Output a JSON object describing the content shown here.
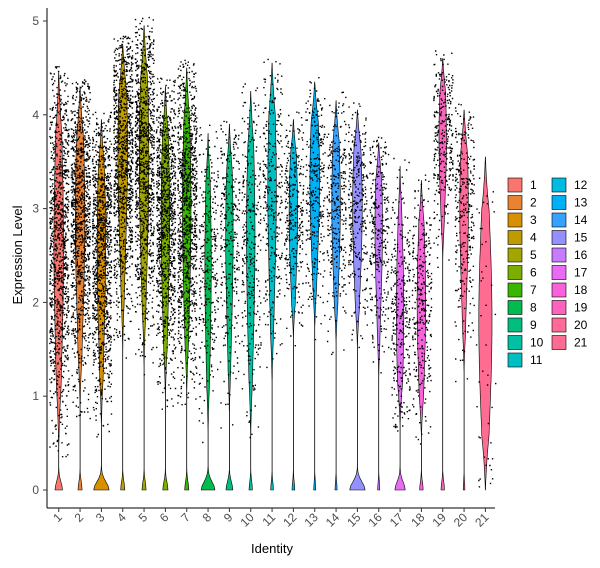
{
  "chart_data": {
    "type": "violin",
    "title": "",
    "xlabel": "Identity",
    "ylabel": "Expression Level",
    "ylim": [
      -0.25,
      5.2
    ],
    "yticks": [
      0,
      1,
      2,
      3,
      4,
      5
    ],
    "grid": false,
    "legend_position": "right",
    "categories": [
      "1",
      "2",
      "3",
      "4",
      "5",
      "6",
      "7",
      "8",
      "9",
      "10",
      "11",
      "12",
      "13",
      "14",
      "15",
      "16",
      "17",
      "18",
      "19",
      "20",
      "21"
    ],
    "colors": [
      "#F8766D",
      "#EA8331",
      "#D89000",
      "#C09B00",
      "#A3A500",
      "#7CAE00",
      "#39B600",
      "#00BB4E",
      "#00BF7D",
      "#00C1A3",
      "#00BFC4",
      "#00BAE0",
      "#00B0F6",
      "#35A2FF",
      "#9590FF",
      "#C77CFF",
      "#E76BF3",
      "#FA62DB",
      "#FF62BC",
      "#FF6A98",
      "#FF6C91"
    ],
    "series": [
      {
        "name": "1",
        "zero_height": 0.22,
        "main_min": 0.45,
        "main_max": 4.45,
        "main_center": 2.6,
        "main_width": 0.45,
        "dots": "dense"
      },
      {
        "name": "2",
        "zero_height": 0.12,
        "main_min": 0.85,
        "main_max": 4.3,
        "main_center": 2.9,
        "main_width": 0.45,
        "dots": "dense"
      },
      {
        "name": "3",
        "zero_height": 0.45,
        "main_min": 0.65,
        "main_max": 3.95,
        "main_center": 2.6,
        "main_width": 0.4,
        "dots": "dense"
      },
      {
        "name": "4",
        "zero_height": 0.12,
        "main_min": 1.45,
        "main_max": 4.75,
        "main_center": 3.6,
        "main_width": 0.45,
        "dots": "dense"
      },
      {
        "name": "5",
        "zero_height": 0.12,
        "main_min": 1.3,
        "main_max": 4.95,
        "main_center": 3.5,
        "main_width": 0.45,
        "dots": "dense"
      },
      {
        "name": "6",
        "zero_height": 0.15,
        "main_min": 0.95,
        "main_max": 4.3,
        "main_center": 2.9,
        "main_width": 0.4,
        "dots": "dense"
      },
      {
        "name": "7",
        "zero_height": 0.12,
        "main_min": 1.0,
        "main_max": 4.5,
        "main_center": 3.0,
        "main_width": 0.4,
        "dots": "dense"
      },
      {
        "name": "8",
        "zero_height": 0.4,
        "main_min": 0.6,
        "main_max": 3.8,
        "main_center": 2.4,
        "main_width": 0.3,
        "dots": "medium"
      },
      {
        "name": "9",
        "zero_height": 0.2,
        "main_min": 0.75,
        "main_max": 3.9,
        "main_center": 2.7,
        "main_width": 0.35,
        "dots": "medium"
      },
      {
        "name": "10",
        "zero_height": 0.1,
        "main_min": 0.55,
        "main_max": 4.25,
        "main_center": 2.7,
        "main_width": 0.4,
        "dots": "medium"
      },
      {
        "name": "11",
        "zero_height": 0.08,
        "main_min": 1.1,
        "main_max": 4.55,
        "main_center": 3.2,
        "main_width": 0.4,
        "dots": "medium"
      },
      {
        "name": "12",
        "zero_height": 0.08,
        "main_min": 1.6,
        "main_max": 3.95,
        "main_center": 2.95,
        "main_width": 0.4,
        "dots": "medium"
      },
      {
        "name": "13",
        "zero_height": 0.06,
        "main_min": 1.7,
        "main_max": 4.35,
        "main_center": 3.3,
        "main_width": 0.45,
        "dots": "medium"
      },
      {
        "name": "14",
        "zero_height": 0.06,
        "main_min": 1.55,
        "main_max": 4.15,
        "main_center": 3.05,
        "main_width": 0.4,
        "dots": "medium"
      },
      {
        "name": "15",
        "zero_height": 0.45,
        "main_min": 1.5,
        "main_max": 4.05,
        "main_center": 3.0,
        "main_width": 0.45,
        "dots": "medium"
      },
      {
        "name": "16",
        "zero_height": 0.06,
        "main_min": 1.15,
        "main_max": 3.7,
        "main_center": 2.8,
        "main_width": 0.35,
        "dots": "medium"
      },
      {
        "name": "17",
        "zero_height": 0.3,
        "main_min": 0.7,
        "main_max": 3.45,
        "main_center": 1.9,
        "main_width": 0.35,
        "dots": "medium"
      },
      {
        "name": "18",
        "zero_height": 0.1,
        "main_min": 0.55,
        "main_max": 3.3,
        "main_center": 2.0,
        "main_width": 0.4,
        "dots": "medium"
      },
      {
        "name": "19",
        "zero_height": 0.1,
        "main_min": 2.45,
        "main_max": 4.6,
        "main_center": 3.75,
        "main_width": 0.35,
        "dots": "medium"
      },
      {
        "name": "20",
        "zero_height": 0.05,
        "main_min": 1.2,
        "main_max": 4.05,
        "main_center": 3.0,
        "main_width": 0.4,
        "dots": "medium"
      },
      {
        "name": "21",
        "zero_height": 0.0,
        "main_min": 0.0,
        "main_max": 3.55,
        "main_center": 1.8,
        "main_width": 0.62,
        "dots": "sparse"
      }
    ]
  }
}
